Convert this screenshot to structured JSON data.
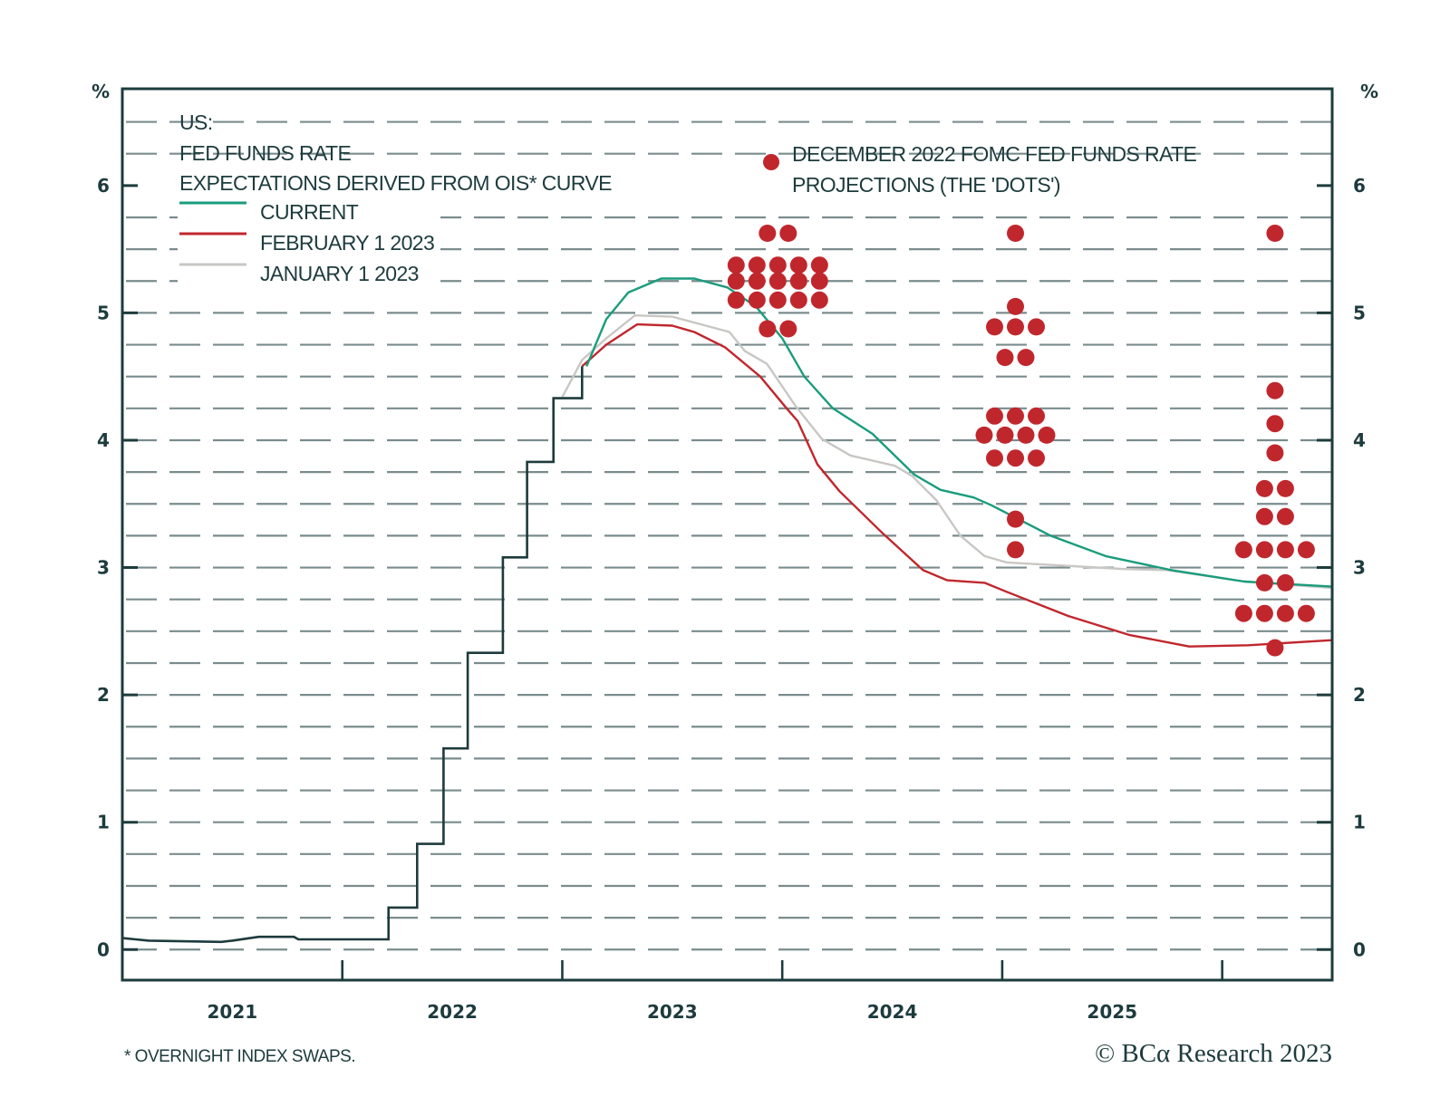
{
  "chart_data": {
    "type": "line",
    "title_lines": [
      "US:",
      "FED FUNDS RATE",
      "EXPECTATIONS DERIVED FROM OIS* CURVE"
    ],
    "y_unit_label": "%",
    "ylim": [
      -0.24,
      6.76
    ],
    "y_ticks": [
      0,
      1,
      2,
      3,
      4,
      5,
      6
    ],
    "y_tick_labels": [
      "0",
      "1",
      "2",
      "3",
      "4",
      "5",
      "6"
    ],
    "grid": "horizontal dashed every 0.25",
    "grid_step": 0.25,
    "xlim": [
      2021.0,
      2026.5
    ],
    "x_tick_positions": [
      2022,
      2023,
      2024,
      2025,
      2026
    ],
    "x_labels": [
      {
        "label": "2021",
        "at": 2021.5
      },
      {
        "label": "2022",
        "at": 2022.5
      },
      {
        "label": "2023",
        "at": 2023.5
      },
      {
        "label": "2024",
        "at": 2024.5
      },
      {
        "label": "2025",
        "at": 2025.5
      }
    ],
    "legend_placement": "top-left",
    "series": [
      {
        "name": "FED FUNDS RATE (ACTUAL)",
        "key": "actual",
        "color": "#1d3b3d",
        "step": true,
        "points": [
          [
            2021.0,
            0.09
          ],
          [
            2021.06,
            0.08
          ],
          [
            2021.12,
            0.07
          ],
          [
            2021.45,
            0.06
          ],
          [
            2021.5,
            0.07
          ],
          [
            2021.62,
            0.1
          ],
          [
            2021.78,
            0.1
          ],
          [
            2021.8,
            0.08
          ],
          [
            2022.21,
            0.08
          ],
          [
            2022.21,
            0.33
          ],
          [
            2022.34,
            0.33
          ],
          [
            2022.34,
            0.83
          ],
          [
            2022.46,
            0.83
          ],
          [
            2022.46,
            1.58
          ],
          [
            2022.57,
            1.58
          ],
          [
            2022.57,
            2.33
          ],
          [
            2022.73,
            2.33
          ],
          [
            2022.73,
            3.08
          ],
          [
            2022.84,
            3.08
          ],
          [
            2022.84,
            3.83
          ],
          [
            2022.96,
            3.83
          ],
          [
            2022.96,
            4.33
          ],
          [
            2023.09,
            4.33
          ],
          [
            2023.09,
            4.58
          ]
        ]
      },
      {
        "name": "CURRENT",
        "key": "current",
        "color": "#1a9c7c",
        "points": [
          [
            2023.11,
            4.58
          ],
          [
            2023.2,
            4.95
          ],
          [
            2023.3,
            5.16
          ],
          [
            2023.45,
            5.27
          ],
          [
            2023.6,
            5.27
          ],
          [
            2023.75,
            5.2
          ],
          [
            2023.88,
            5.05
          ],
          [
            2024.0,
            4.8
          ],
          [
            2024.1,
            4.5
          ],
          [
            2024.23,
            4.25
          ],
          [
            2024.41,
            4.05
          ],
          [
            2024.6,
            3.73
          ],
          [
            2024.72,
            3.61
          ],
          [
            2024.87,
            3.55
          ],
          [
            2024.95,
            3.49
          ],
          [
            2025.22,
            3.25
          ],
          [
            2025.47,
            3.09
          ],
          [
            2025.77,
            2.98
          ],
          [
            2026.1,
            2.89
          ],
          [
            2026.5,
            2.85
          ]
        ]
      },
      {
        "name": "FEBRUARY 1 2023",
        "key": "feb",
        "color": "#c0272d",
        "points": [
          [
            2023.09,
            4.58
          ],
          [
            2023.2,
            4.75
          ],
          [
            2023.34,
            4.91
          ],
          [
            2023.5,
            4.9
          ],
          [
            2023.6,
            4.85
          ],
          [
            2023.74,
            4.73
          ],
          [
            2023.9,
            4.5
          ],
          [
            2024.02,
            4.25
          ],
          [
            2024.07,
            4.15
          ],
          [
            2024.16,
            3.81
          ],
          [
            2024.26,
            3.6
          ],
          [
            2024.45,
            3.28
          ],
          [
            2024.64,
            2.98
          ],
          [
            2024.75,
            2.9
          ],
          [
            2024.92,
            2.88
          ],
          [
            2025.02,
            2.81
          ],
          [
            2025.3,
            2.62
          ],
          [
            2025.58,
            2.47
          ],
          [
            2025.85,
            2.38
          ],
          [
            2026.12,
            2.39
          ],
          [
            2026.5,
            2.43
          ]
        ]
      },
      {
        "name": "JANUARY 1 2023",
        "key": "jan",
        "color": "#c8c7c4",
        "points": [
          [
            2023.0,
            4.34
          ],
          [
            2023.09,
            4.63
          ],
          [
            2023.2,
            4.8
          ],
          [
            2023.33,
            4.98
          ],
          [
            2023.5,
            4.97
          ],
          [
            2023.76,
            4.85
          ],
          [
            2023.83,
            4.7
          ],
          [
            2023.93,
            4.6
          ],
          [
            2024.06,
            4.27
          ],
          [
            2024.18,
            4.01
          ],
          [
            2024.31,
            3.88
          ],
          [
            2024.51,
            3.8
          ],
          [
            2024.59,
            3.72
          ],
          [
            2024.7,
            3.53
          ],
          [
            2024.81,
            3.25
          ],
          [
            2024.92,
            3.09
          ],
          [
            2025.02,
            3.04
          ],
          [
            2025.54,
            2.99
          ],
          [
            2025.75,
            2.98
          ],
          [
            2026.1,
            2.89
          ],
          [
            2026.5,
            2.84
          ]
        ]
      }
    ],
    "dots": {
      "name": "DECEMBER 2022 FOMC FED FUNDS RATE PROJECTIONS (THE 'DOTS')",
      "legend_lines": [
        "DECEMBER 2022 FOMC FED FUNDS RATE",
        "PROJECTIONS (THE 'DOTS')"
      ],
      "color": "#c0272d",
      "groups": [
        {
          "year": "2023",
          "x": 2023.98,
          "rows": [
            {
              "value": 5.625,
              "count": 2
            },
            {
              "value": 5.375,
              "count": 5
            },
            {
              "value": 5.25,
              "count": 5
            },
            {
              "value": 5.1,
              "count": 5
            },
            {
              "value": 4.875,
              "count": 2
            }
          ]
        },
        {
          "year": "2024",
          "x": 2025.06,
          "rows": [
            {
              "value": 5.625,
              "count": 1
            },
            {
              "value": 5.05,
              "count": 1
            },
            {
              "value": 4.89,
              "count": 3
            },
            {
              "value": 4.65,
              "count": 2
            },
            {
              "value": 4.19,
              "count": 3
            },
            {
              "value": 4.04,
              "count": 4
            },
            {
              "value": 3.86,
              "count": 3
            },
            {
              "value": 3.38,
              "count": 1
            },
            {
              "value": 3.14,
              "count": 1
            }
          ]
        },
        {
          "year": "2025",
          "x": 2026.24,
          "rows": [
            {
              "value": 5.625,
              "count": 1
            },
            {
              "value": 4.39,
              "count": 1
            },
            {
              "value": 4.13,
              "count": 1
            },
            {
              "value": 3.9,
              "count": 1
            },
            {
              "value": 3.62,
              "count": 2
            },
            {
              "value": 3.4,
              "count": 2
            },
            {
              "value": 3.14,
              "count": 4
            },
            {
              "value": 2.88,
              "count": 2
            },
            {
              "value": 2.64,
              "count": 4
            },
            {
              "value": 2.37,
              "count": 1
            }
          ]
        }
      ]
    },
    "legend": [
      {
        "label": "CURRENT",
        "color": "#1a9c7c"
      },
      {
        "label": "FEBRUARY 1 2023",
        "color": "#c0272d"
      },
      {
        "label": "JANUARY 1 2023",
        "color": "#c8c7c4"
      }
    ],
    "footnote": "* OVERNIGHT INDEX SWAPS.",
    "copyright": "© BCα Research 2023"
  }
}
